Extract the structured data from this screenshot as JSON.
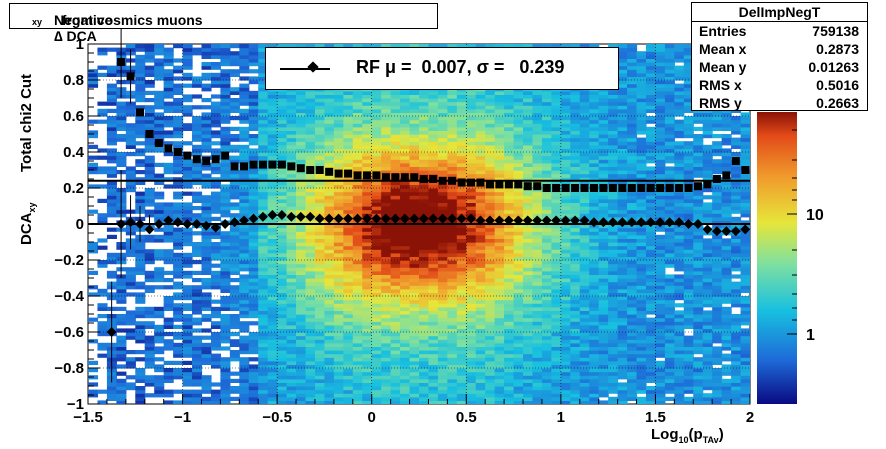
{
  "title": {
    "prefix": "Negative ∆ DCA",
    "sub": "xy",
    "suffix": "  from cosmics muons"
  },
  "stats": {
    "name": "DelImpNegT",
    "rows": [
      {
        "label": "Entries",
        "value": "759138"
      },
      {
        "label": "Mean x",
        "value": "0.2873"
      },
      {
        "label": "Mean y",
        "value": "0.01263"
      },
      {
        "label": "RMS x",
        "value": "0.5016"
      },
      {
        "label": "RMS y",
        "value": "0.2663"
      }
    ]
  },
  "legend": {
    "text": "RF μ =  0.007, σ =   0.239"
  },
  "axes": {
    "ylabel_main": "DCA",
    "ylabel_sub": "xy",
    "ylabel_extra": "Total chi2 Cut",
    "xlabel_main": "Log",
    "xlabel_sub1": "10",
    "xlabel_mid": "(p",
    "xlabel_sub2": "TAv",
    "xlabel_end": ")"
  },
  "chart_data": {
    "type": "heatmap",
    "xlim": [
      -1.5,
      2
    ],
    "ylim": [
      -1,
      1
    ],
    "x_ticks": [
      "−1.5",
      "−1",
      "−0.5",
      "0",
      "0.5",
      "1",
      "1.5",
      "2"
    ],
    "y_ticks": [
      "1",
      "0.8",
      "0.6",
      "0.4",
      "0.2",
      "0",
      "−0.2",
      "−0.4",
      "−0.6",
      "−0.8",
      "−1"
    ],
    "colorbar_ticks": [
      "10",
      "1"
    ],
    "colorbar_scale": "log",
    "grid": true,
    "series": [
      {
        "x": [
          -1.375,
          -1.325,
          -1.275,
          -1.225,
          -1.175,
          -1.125,
          -1.075,
          -1.025,
          -0.975,
          -0.925,
          -0.875,
          -0.825,
          -0.775,
          -0.725,
          -0.675,
          -0.625,
          -0.575,
          -0.525,
          -0.475,
          -0.425,
          -0.375,
          -0.325,
          -0.275,
          -0.225,
          -0.175,
          -0.125,
          -0.075,
          -0.025,
          0.025,
          0.075,
          0.125,
          0.175,
          0.225,
          0.275,
          0.325,
          0.375,
          0.425,
          0.475,
          0.525,
          0.575,
          0.625,
          0.675,
          0.725,
          0.775,
          0.825,
          0.875,
          0.925,
          0.975,
          1.025,
          1.075,
          1.125,
          1.175,
          1.225,
          1.275,
          1.325,
          1.375,
          1.425,
          1.475,
          1.525,
          1.575,
          1.625,
          1.675,
          1.725,
          1.775,
          1.825,
          1.875,
          1.925,
          1.975
        ],
        "y": [
          -0.6,
          0.0,
          0.01,
          0.0,
          -0.03,
          0.0,
          0.02,
          0.01,
          0.0,
          0.0,
          -0.01,
          -0.02,
          0.0,
          0.01,
          0.02,
          0.03,
          0.04,
          0.05,
          0.05,
          0.04,
          0.04,
          0.04,
          0.03,
          0.03,
          0.03,
          0.03,
          0.03,
          0.03,
          0.03,
          0.03,
          0.03,
          0.03,
          0.03,
          0.03,
          0.03,
          0.03,
          0.03,
          0.03,
          0.03,
          0.02,
          0.02,
          0.02,
          0.02,
          0.02,
          0.02,
          0.02,
          0.02,
          0.02,
          0.02,
          0.02,
          0.02,
          0.01,
          0.01,
          0.01,
          0.01,
          0.01,
          0.01,
          0.01,
          0.01,
          0.01,
          0.01,
          0.0,
          0.0,
          -0.03,
          -0.04,
          -0.04,
          -0.04,
          -0.03
        ]
      },
      {
        "x": [
          -1.325,
          -1.275,
          -1.225,
          -1.175,
          -1.125,
          -1.075,
          -1.025,
          -0.975,
          -0.925,
          -0.875,
          -0.825,
          -0.775,
          -0.725,
          -0.675,
          -0.625,
          -0.575,
          -0.525,
          -0.475,
          -0.425,
          -0.375,
          -0.325,
          -0.275,
          -0.225,
          -0.175,
          -0.125,
          -0.075,
          -0.025,
          0.025,
          0.075,
          0.125,
          0.175,
          0.225,
          0.275,
          0.325,
          0.375,
          0.425,
          0.475,
          0.525,
          0.575,
          0.625,
          0.675,
          0.725,
          0.775,
          0.825,
          0.875,
          0.925,
          0.975,
          1.025,
          1.075,
          1.125,
          1.175,
          1.225,
          1.275,
          1.325,
          1.375,
          1.425,
          1.475,
          1.525,
          1.575,
          1.625,
          1.675,
          1.725,
          1.775,
          1.825,
          1.875,
          1.925,
          1.975
        ],
        "y": [
          0.9,
          0.82,
          0.62,
          0.5,
          0.45,
          0.42,
          0.4,
          0.38,
          0.36,
          0.35,
          0.36,
          0.38,
          0.32,
          0.32,
          0.33,
          0.33,
          0.33,
          0.33,
          0.32,
          0.31,
          0.3,
          0.3,
          0.29,
          0.28,
          0.28,
          0.27,
          0.27,
          0.27,
          0.26,
          0.26,
          0.26,
          0.26,
          0.25,
          0.25,
          0.24,
          0.24,
          0.23,
          0.23,
          0.23,
          0.22,
          0.22,
          0.22,
          0.22,
          0.21,
          0.21,
          0.2,
          0.2,
          0.2,
          0.2,
          0.2,
          0.2,
          0.2,
          0.2,
          0.2,
          0.2,
          0.2,
          0.2,
          0.2,
          0.2,
          0.2,
          0.2,
          0.21,
          0.22,
          0.25,
          0.27,
          0.35,
          0.3
        ]
      }
    ],
    "fit_lines": [
      0.24,
      0.0
    ]
  }
}
